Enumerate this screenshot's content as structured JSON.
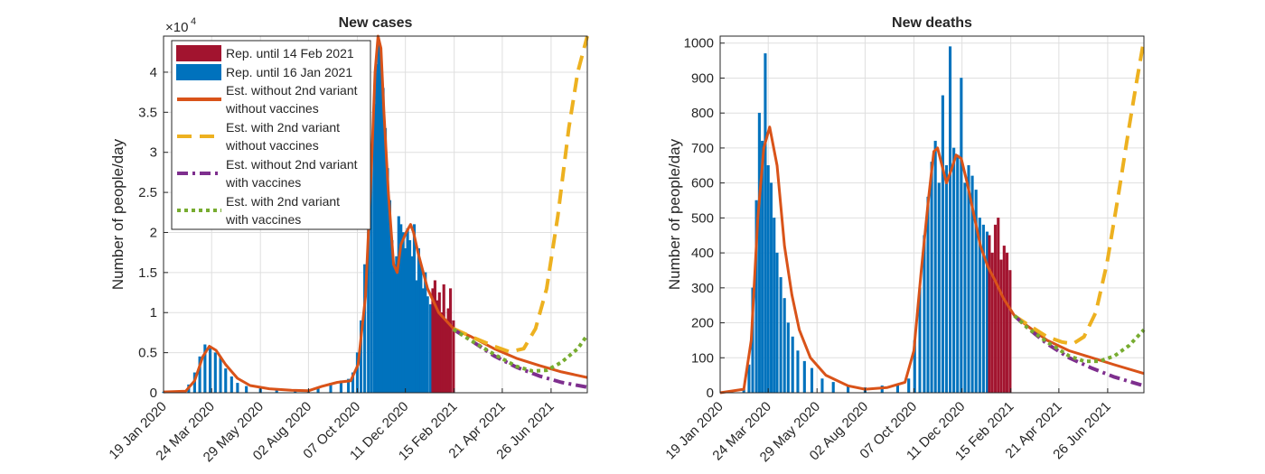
{
  "colors": {
    "reported_new": "#a2142f",
    "reported_old": "#0072bd",
    "est_no_variant_no_vacc": "#d95319",
    "est_variant_no_vacc": "#edb120",
    "est_no_variant_vacc": "#7e2f8e",
    "est_variant_vacc": "#77ac30"
  },
  "chart_data": [
    {
      "type": "bar",
      "title": "New cases",
      "ylabel": "Number of people/day",
      "xlabel": "",
      "y_exponent_label": "×10",
      "y_exponent_power": "4",
      "ylim": [
        0,
        44500
      ],
      "xlim": [
        "2020-01-19",
        "2021-08-14"
      ],
      "grid": true,
      "legend_position": "top-left",
      "x_ticks": [
        "19 Jan 2020",
        "24 Mar 2020",
        "29 May 2020",
        "02 Aug 2020",
        "07 Oct 2020",
        "11 Dec 2020",
        "15 Feb 2021",
        "21 Apr 2021",
        "26 Jun 2021"
      ],
      "y_ticks": [
        "0",
        "0.5",
        "1",
        "1.5",
        "2",
        "2.5",
        "3",
        "3.5",
        "4"
      ],
      "y_tick_values": [
        0,
        5000,
        10000,
        15000,
        20000,
        25000,
        30000,
        35000,
        40000
      ],
      "legend": [
        "Rep. until 14 Feb 2021",
        "Rep. until 16 Jan 2021",
        "Est. without 2nd variant\nwithout vaccines",
        "Est. with 2nd variant\nwithout vaccines",
        "Est. without 2nd variant\nwith vaccines",
        "Est. with 2nd variant\nwith vaccines"
      ],
      "bars_reported_until_16_jan_2021": {
        "x": [
          "2020-01-19",
          "2020-02-15",
          "2020-02-22",
          "2020-03-01",
          "2020-03-08",
          "2020-03-15",
          "2020-03-22",
          "2020-03-29",
          "2020-04-05",
          "2020-04-12",
          "2020-04-20",
          "2020-04-28",
          "2020-05-10",
          "2020-05-29",
          "2020-06-20",
          "2020-07-15",
          "2020-08-02",
          "2020-08-15",
          "2020-09-01",
          "2020-09-15",
          "2020-09-25",
          "2020-10-01",
          "2020-10-07",
          "2020-10-12",
          "2020-10-17",
          "2020-10-22",
          "2020-10-26",
          "2020-10-30",
          "2020-11-02",
          "2020-11-05",
          "2020-11-08",
          "2020-11-11",
          "2020-11-14",
          "2020-11-17",
          "2020-11-20",
          "2020-11-23",
          "2020-11-26",
          "2020-11-29",
          "2020-12-02",
          "2020-12-05",
          "2020-12-08",
          "2020-12-11",
          "2020-12-14",
          "2020-12-17",
          "2020-12-20",
          "2020-12-23",
          "2020-12-26",
          "2020-12-29",
          "2021-01-01",
          "2021-01-04",
          "2021-01-07",
          "2021-01-10",
          "2021-01-14"
        ],
        "values": [
          100,
          200,
          1000,
          2500,
          4500,
          6000,
          5500,
          5000,
          4500,
          3000,
          2000,
          1200,
          800,
          500,
          400,
          300,
          200,
          600,
          1200,
          1500,
          1700,
          2500,
          5000,
          9000,
          16000,
          24000,
          30000,
          36000,
          41000,
          44000,
          42000,
          38000,
          33000,
          28000,
          24000,
          19000,
          16000,
          17000,
          22000,
          21000,
          20000,
          18000,
          20500,
          19000,
          17000,
          21000,
          14000,
          18000,
          16000,
          13000,
          15000,
          12000,
          11000
        ]
      },
      "bars_reported_until_14_feb_2021": {
        "x": [
          "2021-01-17",
          "2021-01-20",
          "2021-01-23",
          "2021-01-26",
          "2021-01-29",
          "2021-02-01",
          "2021-02-04",
          "2021-02-07",
          "2021-02-10",
          "2021-02-14"
        ],
        "values": [
          13000,
          14000,
          11500,
          12500,
          10000,
          13500,
          9000,
          10500,
          13000,
          9000
        ]
      },
      "series": [
        {
          "name": "Est. without 2nd variant\nwithout vaccines",
          "color_key": "est_no_variant_no_vacc",
          "dash": "solid",
          "x": [
            "2020-01-19",
            "2020-02-18",
            "2020-03-01",
            "2020-03-12",
            "2020-03-21",
            "2020-03-30",
            "2020-04-12",
            "2020-04-28",
            "2020-05-15",
            "2020-06-10",
            "2020-07-10",
            "2020-08-02",
            "2020-08-20",
            "2020-09-10",
            "2020-09-28",
            "2020-10-08",
            "2020-10-18",
            "2020-10-26",
            "2020-10-31",
            "2020-11-04",
            "2020-11-08",
            "2020-11-12",
            "2020-11-18",
            "2020-11-25",
            "2020-11-30",
            "2020-12-05",
            "2020-12-12",
            "2020-12-18",
            "2020-12-22",
            "2020-12-28",
            "2021-01-10",
            "2021-01-25",
            "2021-02-14",
            "2021-03-10",
            "2021-04-10",
            "2021-05-10",
            "2021-06-10",
            "2021-07-10",
            "2021-08-14"
          ],
          "y": [
            100,
            200,
            1500,
            4500,
            5800,
            5300,
            3500,
            1800,
            900,
            500,
            300,
            250,
            800,
            1300,
            1500,
            3500,
            12000,
            28000,
            40000,
            44500,
            43000,
            35000,
            25000,
            16000,
            15000,
            18500,
            20000,
            21000,
            20000,
            17500,
            13000,
            10000,
            8000,
            7000,
            5500,
            4300,
            3400,
            2600,
            1900
          ]
        },
        {
          "name": "Est. with 2nd variant\nwithout vaccines",
          "color_key": "est_variant_no_vacc",
          "dash": "dash",
          "x": [
            "2021-02-14",
            "2021-03-10",
            "2021-04-10",
            "2021-05-01",
            "2021-05-20",
            "2021-06-05",
            "2021-06-20",
            "2021-07-05",
            "2021-07-20",
            "2021-08-01",
            "2021-08-14"
          ],
          "y": [
            8000,
            7000,
            5800,
            5100,
            5500,
            8000,
            13000,
            22000,
            33000,
            40000,
            44500
          ]
        },
        {
          "name": "Est. without 2nd variant\nwith vaccines",
          "color_key": "est_no_variant_vacc",
          "dash": "dashdot",
          "x": [
            "2021-02-14",
            "2021-03-10",
            "2021-04-10",
            "2021-05-10",
            "2021-06-10",
            "2021-07-10",
            "2021-08-14"
          ],
          "y": [
            7900,
            6500,
            4600,
            3200,
            2100,
            1300,
            700
          ]
        },
        {
          "name": "Est. with 2nd variant\nwith vaccines",
          "color_key": "est_variant_vacc",
          "dash": "dot",
          "x": [
            "2021-02-14",
            "2021-03-10",
            "2021-04-10",
            "2021-05-10",
            "2021-06-01",
            "2021-06-20",
            "2021-07-10",
            "2021-08-01",
            "2021-08-14"
          ],
          "y": [
            7900,
            6500,
            4800,
            3300,
            2700,
            2800,
            3800,
            5500,
            7200
          ]
        }
      ]
    },
    {
      "type": "bar",
      "title": "New deaths",
      "ylabel": "Number of people/day",
      "xlabel": "",
      "ylim": [
        0,
        1020
      ],
      "xlim": [
        "2020-01-19",
        "2021-08-14"
      ],
      "grid": true,
      "x_ticks": [
        "19 Jan 2020",
        "24 Mar 2020",
        "29 May 2020",
        "02 Aug 2020",
        "07 Oct 2020",
        "11 Dec 2020",
        "15 Feb 2021",
        "21 Apr 2021",
        "26 Jun 2021"
      ],
      "y_ticks": [
        "0",
        "100",
        "200",
        "300",
        "400",
        "500",
        "600",
        "700",
        "800",
        "900",
        "1000"
      ],
      "y_tick_values": [
        0,
        100,
        200,
        300,
        400,
        500,
        600,
        700,
        800,
        900,
        1000
      ],
      "bars_reported_until_16_jan_2021": {
        "x": [
          "2020-02-20",
          "2020-02-27",
          "2020-03-03",
          "2020-03-08",
          "2020-03-12",
          "2020-03-16",
          "2020-03-20",
          "2020-03-24",
          "2020-03-28",
          "2020-04-01",
          "2020-04-05",
          "2020-04-10",
          "2020-04-15",
          "2020-04-20",
          "2020-04-26",
          "2020-05-03",
          "2020-05-12",
          "2020-05-22",
          "2020-06-05",
          "2020-06-20",
          "2020-07-10",
          "2020-08-02",
          "2020-08-25",
          "2020-09-15",
          "2020-09-30",
          "2020-10-08",
          "2020-10-15",
          "2020-10-21",
          "2020-10-26",
          "2020-10-31",
          "2020-11-05",
          "2020-11-10",
          "2020-11-15",
          "2020-11-20",
          "2020-11-25",
          "2020-11-30",
          "2020-12-05",
          "2020-12-10",
          "2020-12-15",
          "2020-12-20",
          "2020-12-25",
          "2020-12-30",
          "2021-01-04",
          "2021-01-09",
          "2021-01-14"
        ],
        "values": [
          10,
          80,
          300,
          550,
          800,
          720,
          970,
          650,
          600,
          500,
          400,
          330,
          270,
          200,
          160,
          120,
          90,
          70,
          40,
          30,
          20,
          15,
          20,
          25,
          40,
          150,
          300,
          450,
          560,
          660,
          720,
          600,
          850,
          650,
          990,
          700,
          680,
          900,
          600,
          650,
          620,
          580,
          500,
          480,
          460
        ]
      },
      "bars_reported_until_14_feb_2021": {
        "x": [
          "2021-01-17",
          "2021-01-21",
          "2021-01-25",
          "2021-01-29",
          "2021-02-02",
          "2021-02-06",
          "2021-02-10",
          "2021-02-14"
        ],
        "values": [
          450,
          400,
          480,
          500,
          380,
          420,
          400,
          350
        ]
      },
      "series": [
        {
          "name": "Est. without 2nd variant\nwithout vaccines",
          "color_key": "est_no_variant_no_vacc",
          "dash": "solid",
          "x": [
            "2020-01-19",
            "2020-02-20",
            "2020-03-01",
            "2020-03-10",
            "2020-03-18",
            "2020-03-26",
            "2020-04-05",
            "2020-04-15",
            "2020-04-25",
            "2020-05-05",
            "2020-05-20",
            "2020-06-10",
            "2020-07-10",
            "2020-08-02",
            "2020-09-01",
            "2020-09-25",
            "2020-10-07",
            "2020-10-17",
            "2020-10-27",
            "2020-11-03",
            "2020-11-08",
            "2020-11-14",
            "2020-11-20",
            "2020-11-27",
            "2020-12-03",
            "2020-12-10",
            "2020-12-18",
            "2020-12-26",
            "2021-01-05",
            "2021-01-15",
            "2021-01-25",
            "2021-02-05",
            "2021-02-20",
            "2021-03-10",
            "2021-04-05",
            "2021-05-05",
            "2021-06-05",
            "2021-07-05",
            "2021-08-14"
          ],
          "y": [
            0,
            10,
            150,
            500,
            700,
            760,
            650,
            420,
            280,
            180,
            100,
            50,
            20,
            10,
            15,
            30,
            120,
            350,
            560,
            690,
            700,
            650,
            600,
            640,
            680,
            670,
            600,
            520,
            420,
            360,
            320,
            270,
            220,
            190,
            150,
            120,
            100,
            80,
            55
          ]
        },
        {
          "name": "Est. with 2nd variant\nwithout vaccines",
          "color_key": "est_variant_no_vacc",
          "dash": "dash",
          "x": [
            "2021-02-20",
            "2021-03-10",
            "2021-04-05",
            "2021-04-25",
            "2021-05-10",
            "2021-05-25",
            "2021-06-10",
            "2021-06-25",
            "2021-07-10",
            "2021-07-25",
            "2021-08-05",
            "2021-08-14"
          ],
          "y": [
            220,
            195,
            160,
            145,
            140,
            160,
            230,
            370,
            560,
            760,
            900,
            1010
          ]
        },
        {
          "name": "Est. without 2nd variant\nwith vaccines",
          "color_key": "est_no_variant_vacc",
          "dash": "dashdot",
          "x": [
            "2021-02-20",
            "2021-03-10",
            "2021-04-05",
            "2021-05-05",
            "2021-06-05",
            "2021-07-05",
            "2021-08-14"
          ],
          "y": [
            220,
            185,
            140,
            100,
            70,
            45,
            20
          ]
        },
        {
          "name": "Est. with 2nd variant\nwith vaccines",
          "color_key": "est_variant_vacc",
          "dash": "dot",
          "x": [
            "2021-02-20",
            "2021-03-10",
            "2021-04-05",
            "2021-05-05",
            "2021-05-25",
            "2021-06-15",
            "2021-07-05",
            "2021-07-25",
            "2021-08-14"
          ],
          "y": [
            220,
            185,
            145,
            105,
            90,
            90,
            105,
            135,
            180
          ]
        }
      ]
    }
  ]
}
